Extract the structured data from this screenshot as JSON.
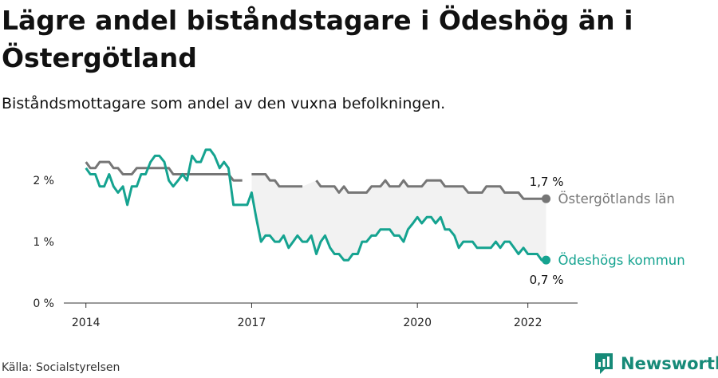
{
  "title": "Lägre andel biståndstagare i Ödeshög än i Östergötland",
  "subtitle": "Biståndsmottagare som andel av den vuxna befolkningen.",
  "source": "Källa: Socialstyrelsen",
  "brand": "Newsworthy",
  "colors": {
    "region": "#767676",
    "municipality": "#15a390",
    "brand": "#168a78",
    "band": "#f2f2f2"
  },
  "chart_data": {
    "type": "line",
    "title": "Lägre andel biståndstagare i Ödeshög än i Östergötland",
    "subtitle": "Biståndsmottagare som andel av den vuxna befolkningen.",
    "xlabel": "",
    "ylabel": "",
    "x_range": [
      2013.6,
      2022.9
    ],
    "ylim": [
      0,
      2.6
    ],
    "y_ticks": [
      {
        "value": 0,
        "label": "0 %"
      },
      {
        "value": 1,
        "label": "1 %"
      },
      {
        "value": 2,
        "label": "2 %"
      }
    ],
    "x_ticks": [
      {
        "value": 2014,
        "label": "2014"
      },
      {
        "value": 2017,
        "label": "2017"
      },
      {
        "value": 2020,
        "label": "2020"
      },
      {
        "value": 2022,
        "label": "2022"
      }
    ],
    "grid": false,
    "legend": "direct labels at line ends",
    "fill_between": true,
    "series": [
      {
        "name": "Östergötlands län",
        "color": "#767676",
        "end_label": "1,7 %",
        "points": [
          [
            2014.0,
            2.3
          ],
          [
            2014.08,
            2.2
          ],
          [
            2014.17,
            2.2
          ],
          [
            2014.25,
            2.3
          ],
          [
            2014.33,
            2.3
          ],
          [
            2014.42,
            2.3
          ],
          [
            2014.5,
            2.2
          ],
          [
            2014.58,
            2.2
          ],
          [
            2014.67,
            2.1
          ],
          [
            2014.75,
            2.1
          ],
          [
            2014.83,
            2.1
          ],
          [
            2014.92,
            2.2
          ],
          [
            2015.0,
            2.2
          ],
          [
            2015.08,
            2.2
          ],
          [
            2015.17,
            2.2
          ],
          [
            2015.25,
            2.2
          ],
          [
            2015.33,
            2.2
          ],
          [
            2015.42,
            2.2
          ],
          [
            2015.5,
            2.2
          ],
          [
            2015.58,
            2.1
          ],
          [
            2015.67,
            2.1
          ],
          [
            2015.75,
            2.1
          ],
          [
            2015.83,
            2.1
          ],
          [
            2015.92,
            2.1
          ],
          [
            2016.0,
            2.1
          ],
          [
            2016.08,
            2.1
          ],
          [
            2016.17,
            2.1
          ],
          [
            2016.25,
            2.1
          ],
          [
            2016.33,
            2.1
          ],
          [
            2016.42,
            2.1
          ],
          [
            2016.5,
            2.1
          ],
          [
            2016.58,
            2.1
          ],
          [
            2016.67,
            2.0
          ],
          [
            2016.75,
            2.0
          ],
          [
            2016.83,
            2.0
          ],
          null,
          [
            2017.0,
            2.1
          ],
          [
            2017.08,
            2.1
          ],
          [
            2017.17,
            2.1
          ],
          [
            2017.25,
            2.1
          ],
          [
            2017.33,
            2.0
          ],
          [
            2017.42,
            2.0
          ],
          [
            2017.5,
            1.9
          ],
          [
            2017.58,
            1.9
          ],
          [
            2017.67,
            1.9
          ],
          [
            2017.75,
            1.9
          ],
          [
            2017.83,
            1.9
          ],
          [
            2017.92,
            1.9
          ],
          null,
          [
            2018.17,
            2.0
          ],
          [
            2018.25,
            1.9
          ],
          [
            2018.33,
            1.9
          ],
          [
            2018.42,
            1.9
          ],
          [
            2018.5,
            1.9
          ],
          [
            2018.58,
            1.8
          ],
          [
            2018.67,
            1.9
          ],
          [
            2018.75,
            1.8
          ],
          [
            2018.83,
            1.8
          ],
          [
            2018.92,
            1.8
          ],
          [
            2019.0,
            1.8
          ],
          [
            2019.08,
            1.8
          ],
          [
            2019.17,
            1.9
          ],
          [
            2019.25,
            1.9
          ],
          [
            2019.33,
            1.9
          ],
          [
            2019.42,
            2.0
          ],
          [
            2019.5,
            1.9
          ],
          [
            2019.58,
            1.9
          ],
          [
            2019.67,
            1.9
          ],
          [
            2019.75,
            2.0
          ],
          [
            2019.83,
            1.9
          ],
          [
            2019.92,
            1.9
          ],
          [
            2020.0,
            1.9
          ],
          [
            2020.08,
            1.9
          ],
          [
            2020.17,
            2.0
          ],
          [
            2020.25,
            2.0
          ],
          [
            2020.33,
            2.0
          ],
          [
            2020.42,
            2.0
          ],
          [
            2020.5,
            1.9
          ],
          [
            2020.58,
            1.9
          ],
          [
            2020.67,
            1.9
          ],
          [
            2020.75,
            1.9
          ],
          [
            2020.83,
            1.9
          ],
          [
            2020.92,
            1.8
          ],
          [
            2021.0,
            1.8
          ],
          [
            2021.08,
            1.8
          ],
          [
            2021.17,
            1.8
          ],
          [
            2021.25,
            1.9
          ],
          [
            2021.33,
            1.9
          ],
          [
            2021.42,
            1.9
          ],
          [
            2021.5,
            1.9
          ],
          [
            2021.58,
            1.8
          ],
          [
            2021.67,
            1.8
          ],
          [
            2021.75,
            1.8
          ],
          [
            2021.83,
            1.8
          ],
          [
            2021.92,
            1.7
          ],
          [
            2022.0,
            1.7
          ],
          [
            2022.08,
            1.7
          ],
          [
            2022.17,
            1.7
          ],
          [
            2022.25,
            1.7
          ],
          [
            2022.33,
            1.7
          ]
        ]
      },
      {
        "name": "Ödeshögs kommun",
        "color": "#15a390",
        "end_label": "0,7 %",
        "points": [
          [
            2014.0,
            2.2
          ],
          [
            2014.08,
            2.1
          ],
          [
            2014.17,
            2.1
          ],
          [
            2014.25,
            1.9
          ],
          [
            2014.33,
            1.9
          ],
          [
            2014.42,
            2.1
          ],
          [
            2014.5,
            1.9
          ],
          [
            2014.58,
            1.8
          ],
          [
            2014.67,
            1.9
          ],
          [
            2014.75,
            1.6
          ],
          [
            2014.83,
            1.9
          ],
          [
            2014.92,
            1.9
          ],
          [
            2015.0,
            2.1
          ],
          [
            2015.08,
            2.1
          ],
          [
            2015.17,
            2.3
          ],
          [
            2015.25,
            2.4
          ],
          [
            2015.33,
            2.4
          ],
          [
            2015.42,
            2.3
          ],
          [
            2015.5,
            2.0
          ],
          [
            2015.58,
            1.9
          ],
          [
            2015.67,
            2.0
          ],
          [
            2015.75,
            2.1
          ],
          [
            2015.83,
            2.0
          ],
          [
            2015.92,
            2.4
          ],
          [
            2016.0,
            2.3
          ],
          [
            2016.08,
            2.3
          ],
          [
            2016.17,
            2.5
          ],
          [
            2016.25,
            2.5
          ],
          [
            2016.33,
            2.4
          ],
          [
            2016.42,
            2.2
          ],
          [
            2016.5,
            2.3
          ],
          [
            2016.58,
            2.2
          ],
          [
            2016.67,
            1.6
          ],
          [
            2016.75,
            1.6
          ],
          [
            2016.83,
            1.6
          ],
          [
            2016.92,
            1.6
          ],
          [
            2017.0,
            1.8
          ],
          [
            2017.08,
            1.4
          ],
          [
            2017.17,
            1.0
          ],
          [
            2017.25,
            1.1
          ],
          [
            2017.33,
            1.1
          ],
          [
            2017.42,
            1.0
          ],
          [
            2017.5,
            1.0
          ],
          [
            2017.58,
            1.1
          ],
          [
            2017.67,
            0.9
          ],
          [
            2017.75,
            1.0
          ],
          [
            2017.83,
            1.1
          ],
          [
            2017.92,
            1.0
          ],
          [
            2018.0,
            1.0
          ],
          [
            2018.08,
            1.1
          ],
          [
            2018.17,
            0.8
          ],
          [
            2018.25,
            1.0
          ],
          [
            2018.33,
            1.1
          ],
          [
            2018.42,
            0.9
          ],
          [
            2018.5,
            0.8
          ],
          [
            2018.58,
            0.8
          ],
          [
            2018.67,
            0.7
          ],
          [
            2018.75,
            0.7
          ],
          [
            2018.83,
            0.8
          ],
          [
            2018.92,
            0.8
          ],
          [
            2019.0,
            1.0
          ],
          [
            2019.08,
            1.0
          ],
          [
            2019.17,
            1.1
          ],
          [
            2019.25,
            1.1
          ],
          [
            2019.33,
            1.2
          ],
          [
            2019.42,
            1.2
          ],
          [
            2019.5,
            1.2
          ],
          [
            2019.58,
            1.1
          ],
          [
            2019.67,
            1.1
          ],
          [
            2019.75,
            1.0
          ],
          [
            2019.83,
            1.2
          ],
          [
            2019.92,
            1.3
          ],
          [
            2020.0,
            1.4
          ],
          [
            2020.08,
            1.3
          ],
          [
            2020.17,
            1.4
          ],
          [
            2020.25,
            1.4
          ],
          [
            2020.33,
            1.3
          ],
          [
            2020.42,
            1.4
          ],
          [
            2020.5,
            1.2
          ],
          [
            2020.58,
            1.2
          ],
          [
            2020.67,
            1.1
          ],
          [
            2020.75,
            0.9
          ],
          [
            2020.83,
            1.0
          ],
          [
            2020.92,
            1.0
          ],
          [
            2021.0,
            1.0
          ],
          [
            2021.08,
            0.9
          ],
          [
            2021.17,
            0.9
          ],
          [
            2021.25,
            0.9
          ],
          [
            2021.33,
            0.9
          ],
          [
            2021.42,
            1.0
          ],
          [
            2021.5,
            0.9
          ],
          [
            2021.58,
            1.0
          ],
          [
            2021.67,
            1.0
          ],
          [
            2021.75,
            0.9
          ],
          [
            2021.83,
            0.8
          ],
          [
            2021.92,
            0.9
          ],
          [
            2022.0,
            0.8
          ],
          [
            2022.08,
            0.8
          ],
          [
            2022.17,
            0.8
          ],
          [
            2022.25,
            0.7
          ],
          [
            2022.33,
            0.7
          ]
        ]
      }
    ]
  }
}
